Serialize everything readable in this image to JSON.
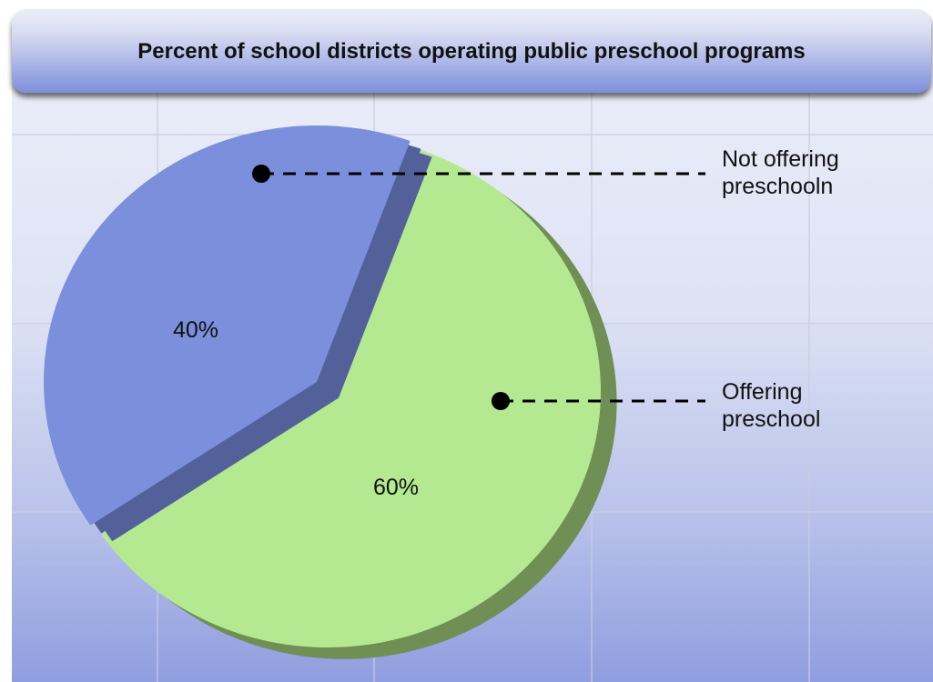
{
  "chart_data": {
    "type": "pie",
    "title": "Percent of school districts operating public preschool programs",
    "slices": [
      {
        "label": "Not offering preschooln",
        "label_lines": [
          "Not offering",
          "preschooln"
        ],
        "value": 40,
        "value_label": "40%",
        "color": "#7b8fdc",
        "side_color": "#53619a"
      },
      {
        "label": "Offering preschool",
        "label_lines": [
          "Offering",
          "preschool"
        ],
        "value": 60,
        "value_label": "60%",
        "color": "#b4e991",
        "side_color": "#6f8f55"
      }
    ],
    "grid": true,
    "legend": "right, callout lines"
  }
}
